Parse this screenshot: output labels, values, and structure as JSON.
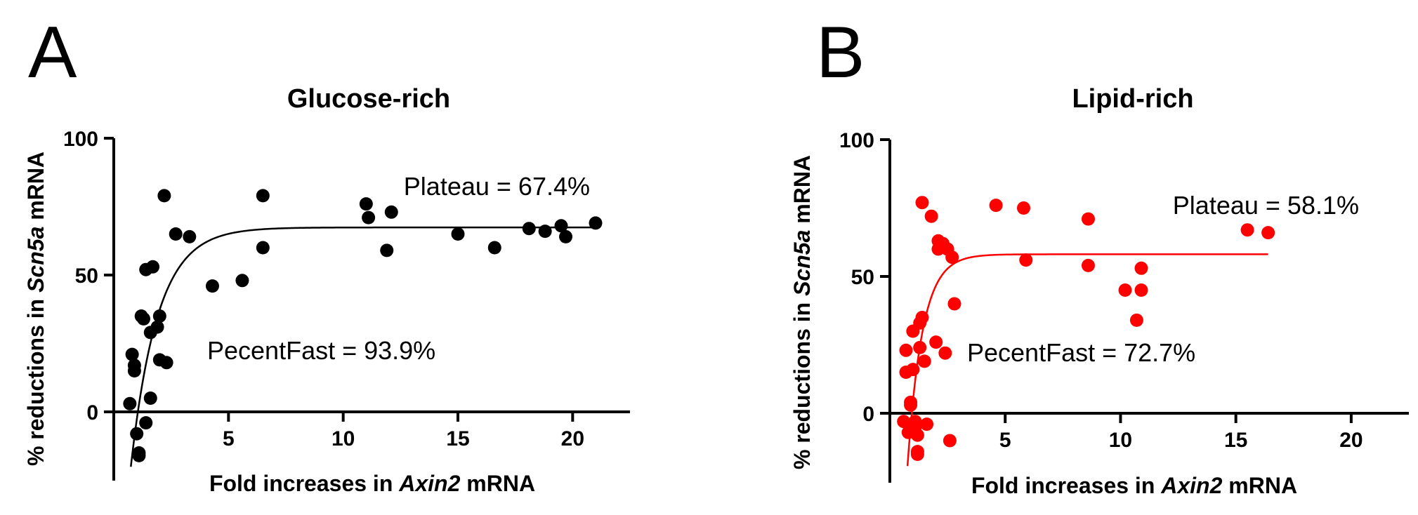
{
  "chart_data": [
    {
      "type": "scatter",
      "panel_letter": "A",
      "title": "Glucose-rich",
      "xlabel_parts": [
        "Fold increases in ",
        "Axin2",
        " mRNA"
      ],
      "ylabel_parts": [
        "% reductions in ",
        "Scn5a",
        " mRNA"
      ],
      "xlim": [
        0,
        22.5
      ],
      "ylim": [
        -25,
        100
      ],
      "xticks": [
        5,
        10,
        15,
        20
      ],
      "yticks": [
        0,
        50,
        100
      ],
      "color": "#000000",
      "annotations": {
        "plateau": "Plateau = 67.4%",
        "fast": "PecentFast = 93.9%"
      },
      "fit": {
        "model": "one-phase association",
        "plateau": 67.4,
        "percent_fast": 93.9,
        "x_start": 0.4,
        "x_end": 21.0
      },
      "points": [
        {
          "x": 0.7,
          "y": 3
        },
        {
          "x": 0.8,
          "y": 21
        },
        {
          "x": 0.9,
          "y": 17
        },
        {
          "x": 0.9,
          "y": 15
        },
        {
          "x": 1.0,
          "y": -8
        },
        {
          "x": 1.1,
          "y": -15
        },
        {
          "x": 1.1,
          "y": -16
        },
        {
          "x": 1.2,
          "y": 35
        },
        {
          "x": 1.3,
          "y": 34
        },
        {
          "x": 1.4,
          "y": -4
        },
        {
          "x": 1.4,
          "y": 52
        },
        {
          "x": 1.6,
          "y": 5
        },
        {
          "x": 1.6,
          "y": 29
        },
        {
          "x": 1.7,
          "y": 53
        },
        {
          "x": 1.9,
          "y": 31
        },
        {
          "x": 2.0,
          "y": 35
        },
        {
          "x": 2.0,
          "y": 19
        },
        {
          "x": 2.2,
          "y": 79
        },
        {
          "x": 2.3,
          "y": 18
        },
        {
          "x": 2.7,
          "y": 65
        },
        {
          "x": 3.3,
          "y": 64
        },
        {
          "x": 4.3,
          "y": 46
        },
        {
          "x": 5.6,
          "y": 48
        },
        {
          "x": 6.5,
          "y": 79
        },
        {
          "x": 6.5,
          "y": 60
        },
        {
          "x": 11.0,
          "y": 76
        },
        {
          "x": 11.1,
          "y": 71
        },
        {
          "x": 11.9,
          "y": 59
        },
        {
          "x": 12.1,
          "y": 73
        },
        {
          "x": 15.0,
          "y": 65
        },
        {
          "x": 16.6,
          "y": 60
        },
        {
          "x": 18.1,
          "y": 67
        },
        {
          "x": 18.8,
          "y": 66
        },
        {
          "x": 19.5,
          "y": 68
        },
        {
          "x": 19.7,
          "y": 64
        },
        {
          "x": 21.0,
          "y": 69
        }
      ]
    },
    {
      "type": "scatter",
      "panel_letter": "B",
      "title": "Lipid-rich",
      "xlabel_parts": [
        "Fold increases in ",
        "Axin2",
        " mRNA"
      ],
      "ylabel_parts": [
        "% reductions in ",
        "Scn5a",
        " mRNA"
      ],
      "xlim": [
        0,
        22.5
      ],
      "ylim": [
        -25,
        100
      ],
      "xticks": [
        5,
        10,
        15,
        20
      ],
      "yticks": [
        0,
        50,
        100
      ],
      "color": "#ff0000",
      "annotations": {
        "plateau": "Plateau = 58.1%",
        "fast": "PecentFast = 72.7%"
      },
      "fit": {
        "model": "one-phase association",
        "plateau": 58.1,
        "percent_fast": 72.7,
        "x_start": 0.5,
        "x_end": 16.4
      },
      "points": [
        {
          "x": 0.6,
          "y": -3
        },
        {
          "x": 0.7,
          "y": 23
        },
        {
          "x": 0.7,
          "y": 15
        },
        {
          "x": 0.8,
          "y": -7
        },
        {
          "x": 0.9,
          "y": 3
        },
        {
          "x": 0.9,
          "y": 4
        },
        {
          "x": 0.9,
          "y": -4
        },
        {
          "x": 1.0,
          "y": 16
        },
        {
          "x": 1.0,
          "y": 30
        },
        {
          "x": 1.1,
          "y": -3
        },
        {
          "x": 1.1,
          "y": -5
        },
        {
          "x": 1.2,
          "y": -14
        },
        {
          "x": 1.2,
          "y": -15
        },
        {
          "x": 1.2,
          "y": -8
        },
        {
          "x": 1.3,
          "y": 33
        },
        {
          "x": 1.3,
          "y": 24
        },
        {
          "x": 1.4,
          "y": 77
        },
        {
          "x": 1.4,
          "y": 35
        },
        {
          "x": 1.5,
          "y": 19
        },
        {
          "x": 1.6,
          "y": -4
        },
        {
          "x": 1.8,
          "y": 72
        },
        {
          "x": 2.0,
          "y": 26
        },
        {
          "x": 2.1,
          "y": 63
        },
        {
          "x": 2.1,
          "y": 60
        },
        {
          "x": 2.3,
          "y": 62
        },
        {
          "x": 2.4,
          "y": 22
        },
        {
          "x": 2.5,
          "y": 60
        },
        {
          "x": 2.6,
          "y": -10
        },
        {
          "x": 2.7,
          "y": 57
        },
        {
          "x": 2.8,
          "y": 40
        },
        {
          "x": 4.6,
          "y": 76
        },
        {
          "x": 5.8,
          "y": 75
        },
        {
          "x": 5.9,
          "y": 56
        },
        {
          "x": 8.6,
          "y": 71
        },
        {
          "x": 8.6,
          "y": 54
        },
        {
          "x": 10.2,
          "y": 45
        },
        {
          "x": 10.7,
          "y": 34
        },
        {
          "x": 10.9,
          "y": 53
        },
        {
          "x": 10.9,
          "y": 45
        },
        {
          "x": 15.5,
          "y": 67
        },
        {
          "x": 16.4,
          "y": 66
        }
      ]
    }
  ]
}
